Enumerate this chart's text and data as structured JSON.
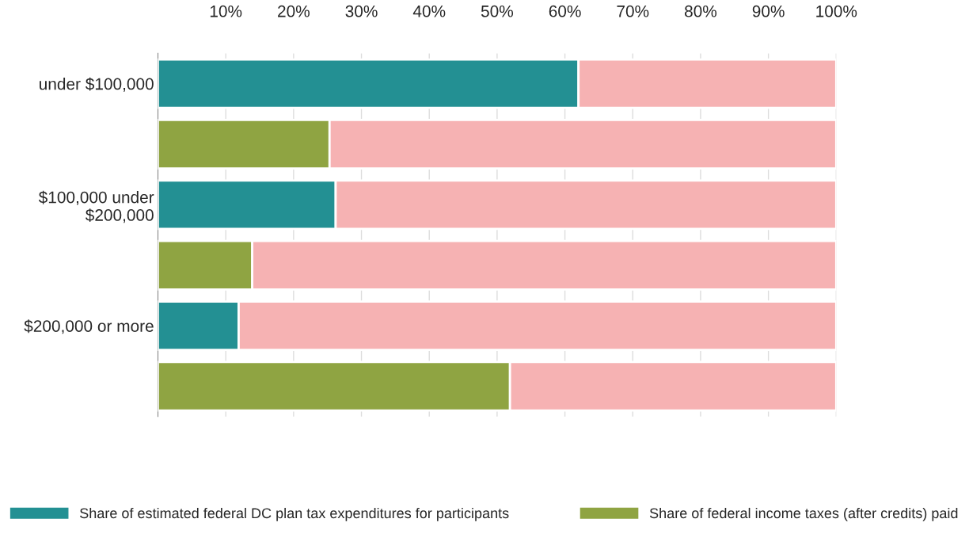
{
  "chart_data": {
    "type": "bar",
    "orientation": "horizontal",
    "stacked": true,
    "categories": [
      "under $100,000",
      null,
      "$100,000 under\n$200,000",
      null,
      "$200,000 or more",
      null
    ],
    "series": [
      {
        "name": "Share of estimated federal DC plan tax expenditures for participants",
        "color": "#239093",
        "values": [
          62.0,
          null,
          26.2,
          null,
          11.9,
          null
        ]
      },
      {
        "name": "Share of federal income taxes (after credits) paid",
        "color": "#8fa442",
        "values": [
          null,
          25.3,
          null,
          13.9,
          null,
          51.9
        ]
      },
      {
        "color": "#f6b2b3",
        "values": [
          38.0,
          74.7,
          73.8,
          86.1,
          88.1,
          48.1
        ]
      }
    ],
    "xlim": [
      0,
      100
    ],
    "xticks": [
      {
        "value": 10,
        "label": "10%"
      },
      {
        "value": 20,
        "label": "20%"
      },
      {
        "value": 30,
        "label": "30%"
      },
      {
        "value": 40,
        "label": "40%"
      },
      {
        "value": 50,
        "label": "50%"
      },
      {
        "value": 60,
        "label": "60%"
      },
      {
        "value": 70,
        "label": "70%"
      },
      {
        "value": 80,
        "label": "80%"
      },
      {
        "value": 90,
        "label": "90%"
      },
      {
        "value": 100,
        "label": "100%"
      }
    ],
    "grid": "x",
    "legend": "bottom"
  }
}
